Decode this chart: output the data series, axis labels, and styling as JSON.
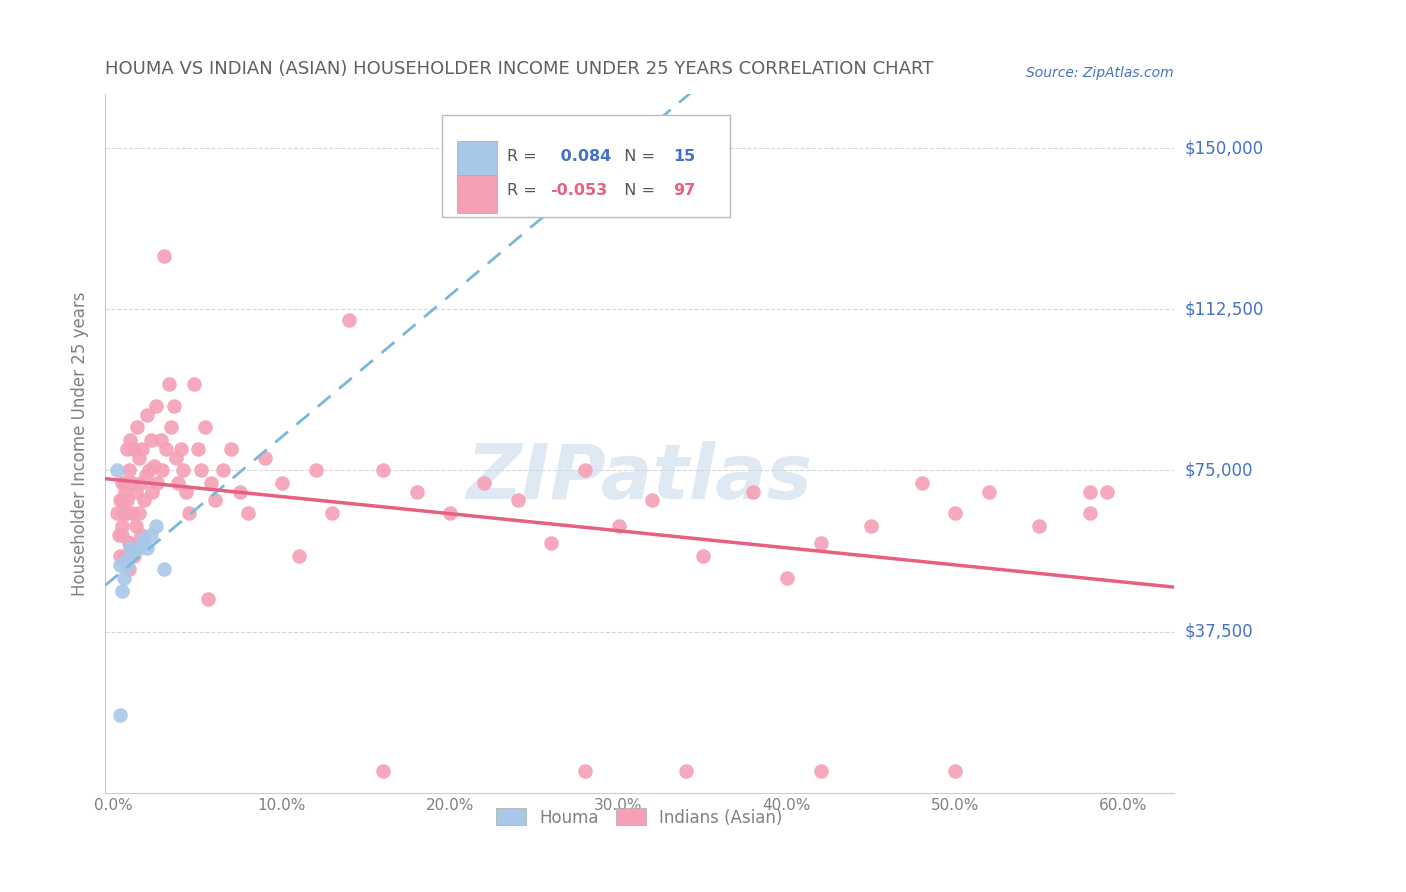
{
  "title": "HOUMA VS INDIAN (ASIAN) HOUSEHOLDER INCOME UNDER 25 YEARS CORRELATION CHART",
  "source": "Source: ZipAtlas.com",
  "ylabel": "Householder Income Under 25 years",
  "xlabel_ticks": [
    "0.0%",
    "10.0%",
    "20.0%",
    "30.0%",
    "40.0%",
    "50.0%",
    "60.0%"
  ],
  "xlabel_vals": [
    0.0,
    0.1,
    0.2,
    0.3,
    0.4,
    0.5,
    0.6
  ],
  "ytick_labels": [
    "$37,500",
    "$75,000",
    "$112,500",
    "$150,000"
  ],
  "ytick_vals": [
    37500,
    75000,
    112500,
    150000
  ],
  "ymin": 0,
  "ymax": 162500,
  "xmin": -0.005,
  "xmax": 0.63,
  "houma_R": "0.084",
  "houma_N": "15",
  "indian_R": "-0.053",
  "indian_N": "97",
  "houma_color": "#a8c8e8",
  "indian_color": "#f5a0b5",
  "houma_line_color": "#7ab8d8",
  "indian_line_color": "#e86080",
  "background_color": "#ffffff",
  "grid_color": "#d8d8d8",
  "title_color": "#606060",
  "axis_label_color": "#808080",
  "right_label_color": "#4472c4",
  "legend_R_color_houma": "#4472c4",
  "legend_R_color_indian": "#e86080",
  "watermark": "ZIPatlas",
  "houma_x": [
    0.002,
    0.004,
    0.005,
    0.006,
    0.007,
    0.008,
    0.01,
    0.012,
    0.015,
    0.018,
    0.02,
    0.022,
    0.025,
    0.03,
    0.004
  ],
  "houma_y": [
    75000,
    53000,
    47000,
    50000,
    54000,
    53000,
    57000,
    56000,
    57000,
    59000,
    57000,
    60000,
    62000,
    52000,
    18000
  ],
  "indian_x": [
    0.002,
    0.003,
    0.004,
    0.004,
    0.005,
    0.005,
    0.006,
    0.007,
    0.007,
    0.008,
    0.008,
    0.009,
    0.009,
    0.01,
    0.01,
    0.011,
    0.011,
    0.012,
    0.012,
    0.013,
    0.013,
    0.014,
    0.015,
    0.015,
    0.016,
    0.016,
    0.017,
    0.018,
    0.019,
    0.02,
    0.021,
    0.022,
    0.023,
    0.024,
    0.025,
    0.026,
    0.028,
    0.029,
    0.03,
    0.031,
    0.033,
    0.034,
    0.036,
    0.037,
    0.038,
    0.04,
    0.041,
    0.043,
    0.045,
    0.048,
    0.05,
    0.052,
    0.054,
    0.056,
    0.058,
    0.06,
    0.065,
    0.07,
    0.075,
    0.08,
    0.09,
    0.1,
    0.11,
    0.12,
    0.13,
    0.14,
    0.16,
    0.18,
    0.2,
    0.22,
    0.24,
    0.26,
    0.28,
    0.3,
    0.32,
    0.35,
    0.38,
    0.4,
    0.42,
    0.45,
    0.48,
    0.5,
    0.52,
    0.55,
    0.58,
    0.59,
    0.005,
    0.005,
    0.006,
    0.008,
    0.009,
    0.34,
    0.58,
    0.42,
    0.5,
    0.28,
    0.16
  ],
  "indian_y": [
    65000,
    60000,
    68000,
    55000,
    72000,
    60000,
    65000,
    70000,
    55000,
    68000,
    80000,
    52000,
    75000,
    82000,
    58000,
    72000,
    65000,
    80000,
    55000,
    70000,
    62000,
    85000,
    78000,
    65000,
    72000,
    60000,
    80000,
    68000,
    74000,
    88000,
    75000,
    82000,
    70000,
    76000,
    90000,
    72000,
    82000,
    75000,
    125000,
    80000,
    95000,
    85000,
    90000,
    78000,
    72000,
    80000,
    75000,
    70000,
    65000,
    95000,
    80000,
    75000,
    85000,
    45000,
    72000,
    68000,
    75000,
    80000,
    70000,
    65000,
    78000,
    72000,
    55000,
    75000,
    65000,
    110000,
    75000,
    70000,
    65000,
    72000,
    68000,
    58000,
    75000,
    62000,
    68000,
    55000,
    70000,
    50000,
    58000,
    62000,
    72000,
    65000,
    70000,
    62000,
    65000,
    70000,
    68000,
    62000,
    72000,
    65000,
    58000,
    5000,
    70000,
    5000,
    5000,
    5000,
    5000
  ]
}
